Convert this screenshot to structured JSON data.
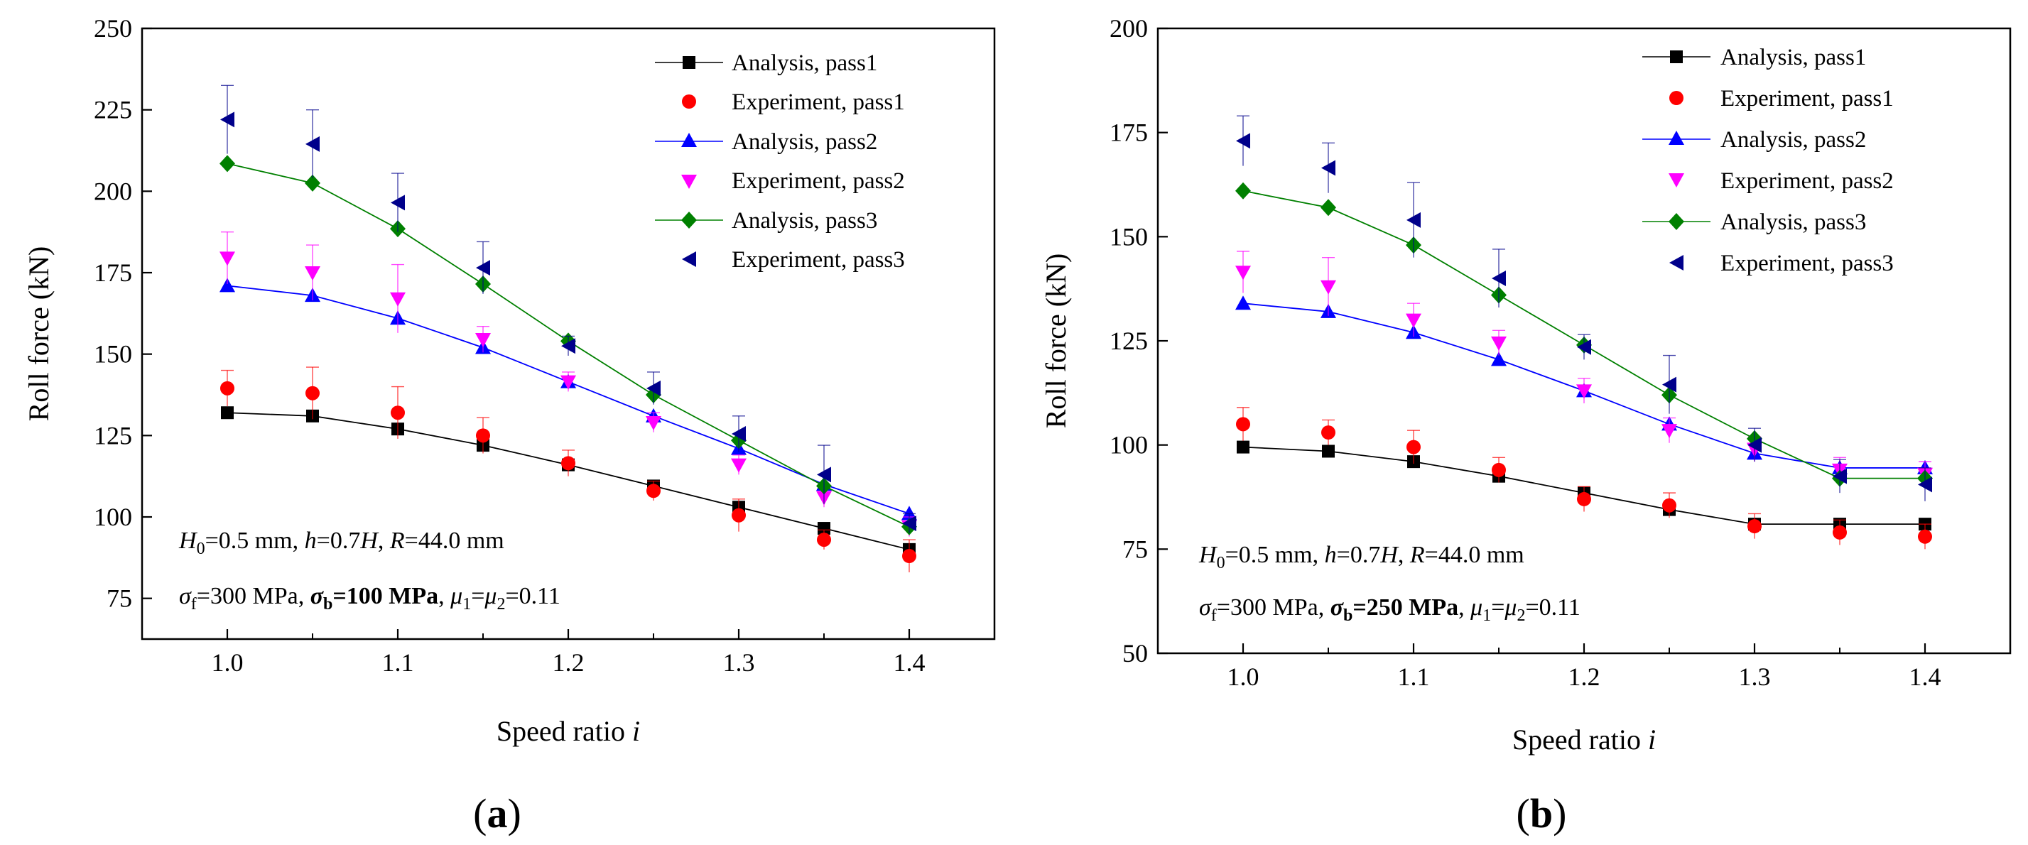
{
  "panels": [
    {
      "label_prefix": "(",
      "label_letter": "a",
      "label_suffix": ")",
      "annotation_line1": {
        "H0_sym": "H",
        "H0_sub": "0",
        "H0_val": "=0.5 mm, ",
        "h_sym": "h",
        "h_eq": "=0.7",
        "H_sym": "H",
        "sep": ", ",
        "R_sym": "R",
        "R_val": "=44.0 mm"
      },
      "annotation_line2": {
        "sf_sym": "σ",
        "sf_sub": "f",
        "sf_val": "=300 MPa, ",
        "sb_sym": "σ",
        "sb_sub": "b",
        "sb_val": "=100 MPa",
        "sep": ", ",
        "mu1_sym": "μ",
        "mu1_sub": "1",
        "eq": "=",
        "mu2_sym": "μ",
        "mu2_sub": "2",
        "mu_val": "=0.11"
      }
    },
    {
      "label_prefix": "(",
      "label_letter": "b",
      "label_suffix": ")",
      "annotation_line1": {
        "H0_sym": "H",
        "H0_sub": "0",
        "H0_val": "=0.5 mm, ",
        "h_sym": "h",
        "h_eq": "=0.7",
        "H_sym": "H",
        "sep": ", ",
        "R_sym": "R",
        "R_val": "=44.0 mm"
      },
      "annotation_line2": {
        "sf_sym": "σ",
        "sf_sub": "f",
        "sf_val": "=300 MPa, ",
        "sb_sym": "σ",
        "sb_sub": "b",
        "sb_val": "=250 MPa",
        "sep": ", ",
        "mu1_sym": "μ",
        "mu1_sub": "1",
        "eq": "=",
        "mu2_sym": "μ",
        "mu2_sub": "2",
        "mu_val": "=0.11"
      }
    }
  ],
  "chart_data": [
    {
      "type": "line",
      "title": "",
      "xlabel": "Speed ratio ",
      "xlabel_italic": "i",
      "ylabel": "Roll force (kN)",
      "xlim": [
        0.95,
        1.45
      ],
      "ylim": [
        62.5,
        250
      ],
      "xticks": [
        "1.0",
        "1.1",
        "1.2",
        "1.3",
        "1.4"
      ],
      "yticks": [
        "75",
        "100",
        "125",
        "150",
        "175",
        "200",
        "225",
        "250"
      ],
      "legend_position": "top-right",
      "x": [
        1.0,
        1.05,
        1.1,
        1.15,
        1.2,
        1.25,
        1.3,
        1.35,
        1.4
      ],
      "series": [
        {
          "name": "Analysis, pass1",
          "kind": "analysis",
          "marker": "square",
          "color": "#000000",
          "values": [
            132,
            131,
            127,
            122,
            116,
            109.5,
            103,
            96.5,
            90
          ]
        },
        {
          "name": "Experiment, pass1",
          "kind": "experiment",
          "marker": "circle",
          "color": "#ff0000",
          "values": [
            139.5,
            138,
            132,
            125,
            116.5,
            108,
            100.5,
            93,
            88
          ],
          "error": [
            5.5,
            8,
            8,
            5.5,
            4,
            3,
            5,
            3,
            5
          ]
        },
        {
          "name": "Analysis, pass2",
          "kind": "analysis",
          "marker": "triangle-up",
          "color": "#0000ff",
          "values": [
            171,
            168,
            161,
            152,
            141.5,
            131,
            121,
            110,
            101
          ]
        },
        {
          "name": "Experiment, pass2",
          "kind": "experiment",
          "marker": "triangle-down",
          "color": "#ff00ff",
          "values": [
            179.5,
            175,
            167,
            154.5,
            141.5,
            129,
            116,
            106,
            97
          ],
          "error": [
            8,
            8.5,
            10.5,
            4,
            3,
            3,
            3,
            3,
            3
          ]
        },
        {
          "name": "Analysis, pass3",
          "kind": "analysis",
          "marker": "diamond",
          "color": "#008000",
          "values": [
            208.5,
            202.5,
            188.5,
            171.5,
            154,
            137.5,
            123.5,
            109.5,
            97
          ]
        },
        {
          "name": "Experiment, pass3",
          "kind": "experiment",
          "marker": "triangle-left",
          "color": "#00008b",
          "values": [
            222,
            214.5,
            196.5,
            176.5,
            152.5,
            139.5,
            125.5,
            113,
            98
          ],
          "error": [
            10.5,
            10.5,
            9,
            8,
            3,
            5,
            5.5,
            9,
            3
          ]
        }
      ]
    },
    {
      "type": "line",
      "title": "",
      "xlabel": "Speed ratio ",
      "xlabel_italic": "i",
      "ylabel": "Roll force (kN)",
      "xlim": [
        0.95,
        1.45
      ],
      "ylim": [
        50,
        200
      ],
      "xticks": [
        "1.0",
        "1.1",
        "1.2",
        "1.3",
        "1.4"
      ],
      "yticks": [
        "50",
        "75",
        "100",
        "125",
        "150",
        "175",
        "200"
      ],
      "legend_position": "top-right",
      "x": [
        1.0,
        1.05,
        1.1,
        1.15,
        1.2,
        1.25,
        1.3,
        1.35,
        1.4
      ],
      "series": [
        {
          "name": "Analysis, pass1",
          "kind": "analysis",
          "marker": "square",
          "color": "#000000",
          "values": [
            99.5,
            98.5,
            96,
            92.5,
            88.5,
            84.5,
            81,
            81,
            81
          ]
        },
        {
          "name": "Experiment, pass1",
          "kind": "experiment",
          "marker": "circle",
          "color": "#ff0000",
          "values": [
            105,
            103,
            99.5,
            94,
            87,
            85.5,
            80.5,
            79,
            78
          ],
          "error": [
            4,
            3,
            4,
            3,
            3,
            3,
            3,
            3,
            3
          ]
        },
        {
          "name": "Analysis, pass2",
          "kind": "analysis",
          "marker": "triangle-up",
          "color": "#0000ff",
          "values": [
            134,
            132,
            127,
            120.5,
            113,
            105,
            98,
            94.5,
            94.5
          ]
        },
        {
          "name": "Experiment, pass2",
          "kind": "experiment",
          "marker": "triangle-down",
          "color": "#ff00ff",
          "values": [
            141.5,
            138,
            130,
            124.5,
            113,
            103.5,
            99,
            94,
            93
          ],
          "error": [
            5,
            7,
            4,
            3,
            3,
            3,
            3,
            3,
            3
          ]
        },
        {
          "name": "Analysis, pass3",
          "kind": "analysis",
          "marker": "diamond",
          "color": "#008000",
          "values": [
            161,
            157,
            148,
            136,
            124,
            112,
            101.5,
            92,
            92
          ]
        },
        {
          "name": "Experiment, pass3",
          "kind": "experiment",
          "marker": "triangle-left",
          "color": "#00008b",
          "values": [
            173,
            166.5,
            154,
            140,
            123.5,
            114.5,
            100,
            92.5,
            90.5
          ],
          "error": [
            6,
            6,
            9,
            7,
            3,
            7,
            4,
            4,
            4
          ]
        }
      ]
    }
  ]
}
